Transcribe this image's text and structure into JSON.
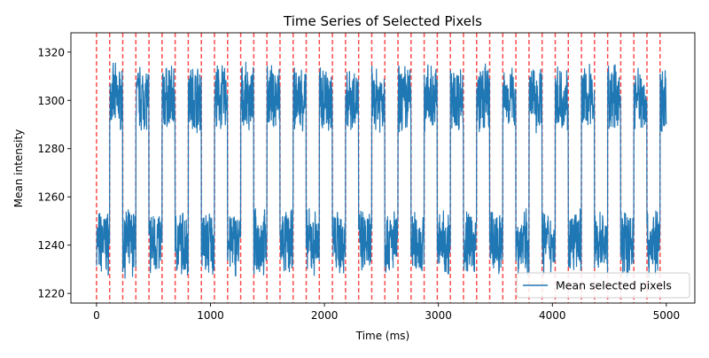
{
  "chart_data": {
    "type": "line",
    "title": "Time Series of Selected Pixels",
    "xlabel": "Time (ms)",
    "ylabel": "Mean intensity",
    "xlim": [
      -225,
      5250
    ],
    "ylim": [
      1216,
      1328
    ],
    "xticks": [
      0,
      1000,
      2000,
      3000,
      4000,
      5000
    ],
    "yticks": [
      1220,
      1240,
      1260,
      1280,
      1300,
      1320
    ],
    "grid": false,
    "legend": {
      "position": "lower-right",
      "entries": [
        "Mean selected pixels"
      ]
    },
    "colors": {
      "series": "#1f77b4",
      "markers": "#ff0000"
    },
    "series": [
      {
        "name": "Mean selected pixels",
        "style": "square-wave, high plateau ≈1300 / low plateau ≈1240, period ≈230 ms",
        "high_level": 1301,
        "low_level": 1241,
        "noise_amplitude": 12,
        "x_range": [
          0,
          5000
        ]
      }
    ],
    "event_markers": {
      "style": "dashed vertical lines",
      "x": [
        0,
        115,
        230,
        345,
        460,
        575,
        690,
        805,
        920,
        1035,
        1150,
        1265,
        1380,
        1495,
        1610,
        1725,
        1840,
        1955,
        2070,
        2185,
        2300,
        2415,
        2530,
        2645,
        2760,
        2875,
        2990,
        3105,
        3220,
        3335,
        3450,
        3565,
        3680,
        3795,
        3910,
        4025,
        4140,
        4255,
        4370,
        4485,
        4600,
        4715,
        4830,
        4945
      ]
    }
  }
}
